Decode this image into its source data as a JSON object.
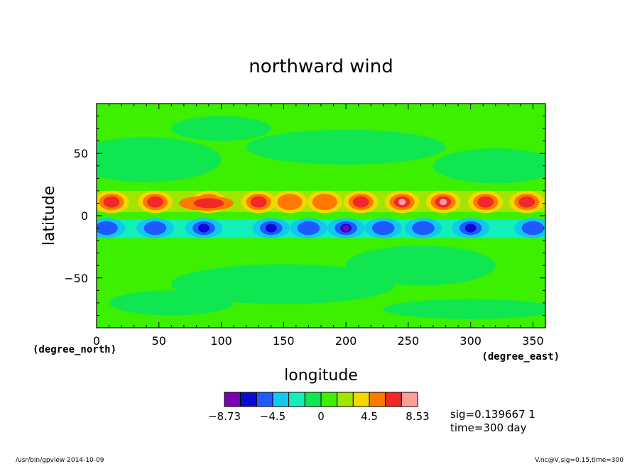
{
  "chart_data": {
    "type": "heatmap",
    "title": "northward wind",
    "xlabel": "longitude",
    "ylabel": "latitude",
    "x_unit": "(degree_east)",
    "y_unit": "(degree_north)",
    "xlim": [
      0,
      360
    ],
    "ylim": [
      -90,
      90
    ],
    "x_ticks": [
      0,
      50,
      100,
      150,
      200,
      250,
      300,
      350
    ],
    "y_ticks": [
      -50,
      0,
      50
    ],
    "x_tick_labels": [
      "0",
      "50",
      "100",
      "150",
      "200",
      "250",
      "300",
      "350"
    ],
    "y_tick_labels": [
      "−50",
      "0",
      "50"
    ],
    "colorbar": {
      "min_label": "−8.73",
      "max_label": "8.53",
      "tick_labels": [
        "−4.5",
        "0",
        "4.5"
      ],
      "colors": [
        "#7a00b4",
        "#0a0ad2",
        "#1e5aff",
        "#10c8f0",
        "#10f0b8",
        "#10e650",
        "#3cf000",
        "#a0e600",
        "#f0d800",
        "#ff7800",
        "#f02828",
        "#ff9c9c"
      ]
    },
    "features": {
      "north_cells_lon": [
        12,
        47,
        90,
        130,
        155,
        183,
        212,
        245,
        278,
        312,
        345
      ],
      "north_cells_lat": 11,
      "north_cells_peak_max": 8.53,
      "south_cells_lon": [
        8,
        47,
        86,
        140,
        170,
        200,
        230,
        262,
        300,
        350
      ],
      "south_cells_lat": -10,
      "south_cells_peak_min": -8.73
    }
  },
  "annotations": {
    "sig": "sig=0.139667 1",
    "time": "time=300 day",
    "footer_left": "/usr/bin/gpview  2014-10-09",
    "footer_right": "V.nc@V,sig=0.15,time=300"
  }
}
